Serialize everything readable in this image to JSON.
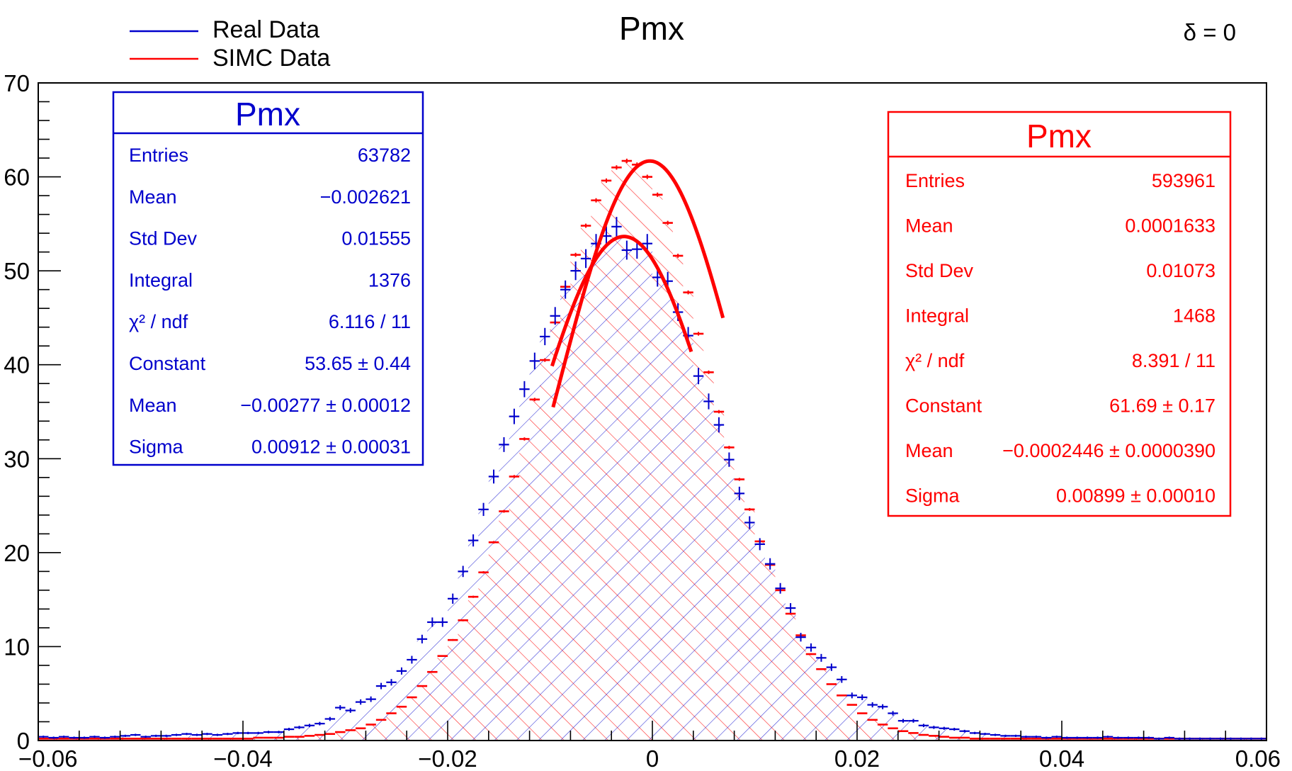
{
  "chart_data": {
    "type": "histogram",
    "title": "Pmx",
    "annotation": "δ = 0",
    "xlim": [
      -0.06,
      0.06
    ],
    "ylim": [
      0,
      70
    ],
    "x_ticks": [
      {
        "value": -0.06,
        "label": "−0.06"
      },
      {
        "value": -0.04,
        "label": "−0.04"
      },
      {
        "value": -0.02,
        "label": "−0.02"
      },
      {
        "value": 0,
        "label": "0"
      },
      {
        "value": 0.02,
        "label": "0.02"
      },
      {
        "value": 0.04,
        "label": "0.04"
      },
      {
        "value": 0.06,
        "label": "0.06"
      }
    ],
    "y_ticks": [
      {
        "value": 0,
        "label": "0"
      },
      {
        "value": 10,
        "label": "10"
      },
      {
        "value": 20,
        "label": "20"
      },
      {
        "value": 30,
        "label": "30"
      },
      {
        "value": 40,
        "label": "40"
      },
      {
        "value": 50,
        "label": "50"
      },
      {
        "value": 60,
        "label": "60"
      },
      {
        "value": 70,
        "label": "70"
      }
    ],
    "legend": [
      {
        "label": "Real Data",
        "color": "#0000cc"
      },
      {
        "label": "SIMC Data",
        "color": "#ff0000"
      }
    ],
    "bin_width": 0.001,
    "series": [
      {
        "name": "Real Data",
        "color": "#0000cc",
        "x_start": -0.0595,
        "values": [
          0.4,
          0.3,
          0.4,
          0.3,
          0.3,
          0.4,
          0.3,
          0.4,
          0.5,
          0.6,
          0.4,
          0.5,
          0.5,
          0.6,
          0.7,
          0.6,
          0.7,
          0.6,
          0.7,
          0.8,
          0.8,
          0.8,
          0.9,
          0.9,
          1.2,
          1.4,
          1.6,
          1.8,
          2.3,
          3.5,
          3.2,
          4.1,
          4.4,
          5.8,
          6.2,
          7.4,
          8.6,
          10.8,
          12.6,
          12.6,
          15.1,
          18.0,
          21.3,
          24.6,
          28.1,
          31.5,
          34.5,
          37.4,
          40.4,
          43.0,
          45.2,
          48.0,
          50.0,
          51.3,
          52.9,
          53.7,
          54.7,
          52.2,
          52.3,
          52.9,
          49.3,
          48.9,
          45.6,
          43.1,
          38.8,
          36.1,
          33.6,
          29.9,
          26.3,
          23.2,
          20.9,
          18.8,
          16.2,
          14.1,
          11.0,
          9.9,
          8.8,
          7.8,
          6.5,
          4.8,
          4.6,
          3.8,
          3.6,
          2.9,
          2.1,
          2.1,
          1.6,
          1.4,
          1.3,
          1.2,
          1.0,
          0.8,
          0.7,
          0.6,
          0.5,
          0.5,
          0.4,
          0.4,
          0.3,
          0.4,
          0.3,
          0.3,
          0.3,
          0.3,
          0.4,
          0.3,
          0.3,
          0.3,
          0.3,
          0.2,
          0.3,
          0.2,
          0.2,
          0.2,
          0.2,
          0.2,
          0.2,
          0.2,
          0.2,
          0.2
        ],
        "stats": {
          "title": "Pmx",
          "rows": [
            {
              "label": "Entries",
              "value": "63782"
            },
            {
              "label": "Mean",
              "value": "−0.002621"
            },
            {
              "label": "Std Dev",
              "value": "0.01555"
            },
            {
              "label": "Integral",
              "value": "1376"
            },
            {
              "label": "χ² / ndf",
              "value": "6.116 / 11"
            },
            {
              "label": "Constant",
              "value": "53.65 ± 0.44"
            },
            {
              "label": "Mean",
              "value": "−0.00277 ± 0.00012"
            },
            {
              "label": "Sigma",
              "value": "0.00912 ± 0.00031"
            }
          ]
        },
        "fit": {
          "constant": 53.65,
          "mean": -0.00277,
          "sigma": 0.00912,
          "range": [
            -0.0098,
            0.0038
          ]
        }
      },
      {
        "name": "SIMC Data",
        "color": "#ff0000",
        "x_start": -0.0595,
        "values": [
          0.2,
          0.2,
          0.2,
          0.2,
          0.2,
          0.2,
          0.2,
          0.2,
          0.2,
          0.2,
          0.2,
          0.2,
          0.2,
          0.2,
          0.2,
          0.2,
          0.2,
          0.2,
          0.2,
          0.2,
          0.2,
          0.3,
          0.3,
          0.3,
          0.4,
          0.4,
          0.5,
          0.6,
          0.7,
          0.9,
          1.1,
          1.3,
          1.7,
          2.2,
          2.9,
          3.6,
          4.6,
          5.8,
          7.3,
          9.0,
          10.7,
          12.8,
          15.3,
          17.9,
          21.1,
          24.4,
          28.1,
          32.1,
          36.3,
          40.5,
          44.5,
          48.3,
          51.7,
          54.8,
          57.5,
          59.6,
          61.0,
          61.7,
          61.3,
          60.0,
          58.1,
          55.1,
          51.6,
          47.7,
          43.3,
          39.2,
          35.0,
          31.2,
          27.8,
          24.6,
          21.2,
          18.7,
          16.0,
          13.5,
          11.2,
          9.2,
          7.6,
          6.0,
          4.8,
          3.8,
          2.9,
          2.2,
          1.7,
          1.3,
          1.0,
          0.8,
          0.6,
          0.5,
          0.4,
          0.3,
          0.3,
          0.2,
          0.2,
          0.2,
          0.2,
          0.2,
          0.2,
          0.2,
          0.2,
          0.2,
          0.2,
          0.2,
          0.2,
          0.2,
          0.2,
          0.2,
          0.2,
          0.2,
          0.2,
          0.2,
          0.2,
          0.2,
          0.2,
          0.2,
          0.2,
          0.2,
          0.2,
          0.2,
          0.2,
          0.2
        ],
        "stats": {
          "title": "Pmx",
          "rows": [
            {
              "label": "Entries",
              "value": "593961"
            },
            {
              "label": "Mean",
              "value": "0.0001633"
            },
            {
              "label": "Std Dev",
              "value": "0.01073"
            },
            {
              "label": "Integral",
              "value": "1468"
            },
            {
              "label": "χ² / ndf",
              "value": "8.391 / 11"
            },
            {
              "label": "Constant",
              "value": "61.69 ± 0.17"
            },
            {
              "label": "Mean",
              "value": "−0.0002446 ± 0.0000390"
            },
            {
              "label": "Sigma",
              "value": "0.00899 ± 0.00010"
            }
          ]
        },
        "fit": {
          "constant": 61.69,
          "mean": -0.0002446,
          "sigma": 0.00899,
          "range": [
            -0.0097,
            0.0069
          ]
        }
      }
    ]
  }
}
